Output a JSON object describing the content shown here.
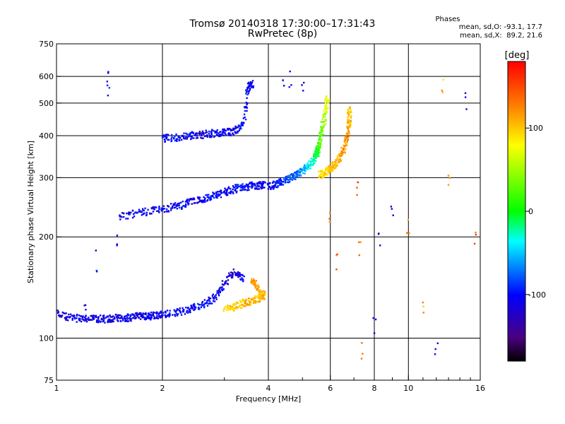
{
  "chart_data": {
    "type": "scatter",
    "title": "Tromsø 20140318 17:30:00–17:31:43",
    "subtitle": "RwPretec (8p)",
    "xlabel": "Frequency [MHz]",
    "ylabel": "Stationary phase Virtual Height [km]",
    "x_scale": "log",
    "y_scale": "log",
    "xlim": [
      1,
      16
    ],
    "ylim": [
      75,
      750
    ],
    "x_ticks": [
      1,
      2,
      4,
      6,
      8,
      10,
      16
    ],
    "y_ticks": [
      75,
      100,
      200,
      300,
      400,
      500,
      600,
      750
    ],
    "x_tick_labels": [
      "1",
      "2",
      "4",
      "6",
      "8",
      "10",
      "16"
    ],
    "y_tick_labels": [
      "75",
      "100",
      "200",
      "300",
      "400",
      "500",
      "600",
      "750"
    ],
    "x_minor_ticks": [
      3,
      5,
      7,
      9,
      11,
      12,
      13,
      14,
      15
    ],
    "grid": true,
    "legend": {
      "title": "Phases",
      "lines": [
        "mean, sd,O: -93.1, 17.7",
        "mean, sd,X:  89.2, 21.6"
      ]
    },
    "colorbar": {
      "title": "[deg]",
      "range": [
        -180,
        180
      ],
      "ticks": [
        100,
        0,
        -100
      ],
      "tick_labels": [
        "100",
        "0",
        "-100"
      ]
    },
    "series": [
      {
        "id": "O",
        "trace_kind": "curve",
        "points": [
          [
            1.0,
            118,
            -115
          ],
          [
            1.1,
            115,
            -110
          ],
          [
            1.2,
            114,
            -105
          ],
          [
            1.3,
            114,
            -112
          ],
          [
            1.4,
            114,
            -108
          ],
          [
            1.5,
            115,
            -110
          ],
          [
            1.6,
            115,
            -100
          ],
          [
            1.7,
            116,
            -112
          ],
          [
            1.8,
            116,
            -105
          ],
          [
            1.9,
            117,
            -108
          ],
          [
            2.0,
            118,
            -110
          ],
          [
            2.2,
            119,
            -100
          ],
          [
            2.4,
            122,
            -105
          ],
          [
            2.6,
            126,
            -95
          ],
          [
            2.8,
            131,
            -100
          ],
          [
            3.0,
            145,
            -110
          ],
          [
            3.2,
            158,
            -120
          ],
          [
            3.4,
            150,
            -100
          ]
        ]
      },
      {
        "id": "X",
        "trace_kind": "curve",
        "points": [
          [
            3.0,
            122,
            95
          ],
          [
            3.2,
            124,
            100
          ],
          [
            3.4,
            127,
            105
          ],
          [
            3.6,
            129,
            110
          ],
          [
            3.8,
            132,
            100
          ],
          [
            3.9,
            134,
            105
          ],
          [
            3.7,
            142,
            115
          ],
          [
            3.6,
            150,
            120
          ]
        ]
      },
      {
        "id": "F1",
        "trace_kind": "curve",
        "points": [
          [
            1.5,
            230,
            -110
          ],
          [
            1.7,
            235,
            -105
          ],
          [
            1.9,
            240,
            -110
          ],
          [
            2.1,
            244,
            -100
          ],
          [
            2.3,
            250,
            -105
          ],
          [
            2.5,
            256,
            -110
          ],
          [
            2.7,
            262,
            -100
          ],
          [
            2.9,
            268,
            -105
          ],
          [
            3.1,
            275,
            -110
          ],
          [
            3.3,
            280,
            -95
          ],
          [
            3.5,
            283,
            -100
          ],
          [
            3.7,
            284,
            -105
          ],
          [
            3.9,
            286,
            -110
          ]
        ]
      },
      {
        "id": "F2O",
        "trace_kind": "curve",
        "points": [
          [
            4.0,
            282,
            -105
          ],
          [
            4.2,
            286,
            -100
          ],
          [
            4.4,
            292,
            -90
          ],
          [
            4.6,
            298,
            -80
          ],
          [
            4.8,
            305,
            -70
          ],
          [
            5.0,
            315,
            -60
          ],
          [
            5.2,
            325,
            -40
          ],
          [
            5.4,
            340,
            -20
          ],
          [
            5.5,
            355,
            0
          ],
          [
            5.6,
            380,
            20
          ],
          [
            5.7,
            420,
            40
          ],
          [
            5.8,
            470,
            60
          ],
          [
            5.9,
            520,
            80
          ]
        ]
      },
      {
        "id": "F2X",
        "trace_kind": "curve",
        "points": [
          [
            5.6,
            305,
            90
          ],
          [
            5.8,
            310,
            95
          ],
          [
            6.0,
            320,
            100
          ],
          [
            6.2,
            330,
            105
          ],
          [
            6.4,
            345,
            110
          ],
          [
            6.6,
            370,
            115
          ],
          [
            6.7,
            400,
            120
          ],
          [
            6.8,
            440,
            110
          ],
          [
            6.8,
            480,
            100
          ]
        ]
      },
      {
        "id": "Es",
        "trace_kind": "curve",
        "points": [
          [
            2.0,
            392,
            -105
          ],
          [
            2.2,
            395,
            -100
          ],
          [
            2.4,
            399,
            -105
          ],
          [
            2.6,
            403,
            -110
          ],
          [
            2.8,
            406,
            -100
          ],
          [
            3.0,
            408,
            -105
          ],
          [
            3.2,
            412,
            -110
          ],
          [
            3.4,
            430,
            -95
          ],
          [
            3.5,
            560,
            -100
          ],
          [
            3.6,
            570,
            -110
          ]
        ]
      },
      {
        "id": "noise",
        "trace_kind": "scatter",
        "points": [
          [
            1.4,
            620,
            -110
          ],
          [
            1.4,
            560,
            -100
          ],
          [
            1.5,
            190,
            -110
          ],
          [
            1.3,
            170,
            -110
          ],
          [
            1.2,
            130,
            -120
          ],
          [
            6.0,
            220,
            130
          ],
          [
            6.3,
            170,
            140
          ],
          [
            7.2,
            280,
            150
          ],
          [
            7.3,
            180,
            130
          ],
          [
            7.4,
            90,
            150
          ],
          [
            8.0,
            110,
            -110
          ],
          [
            8.3,
            200,
            -100
          ],
          [
            9.0,
            230,
            -110
          ],
          [
            10.0,
            210,
            120
          ],
          [
            11.0,
            120,
            110
          ],
          [
            12.0,
            95,
            -120
          ],
          [
            12.5,
            560,
            100
          ],
          [
            13.0,
            300,
            120
          ],
          [
            14.5,
            500,
            -110
          ],
          [
            15.5,
            200,
            150
          ],
          [
            4.6,
            600,
            -110
          ],
          [
            4.4,
            580,
            -100
          ],
          [
            5.0,
            580,
            -110
          ]
        ]
      }
    ]
  }
}
